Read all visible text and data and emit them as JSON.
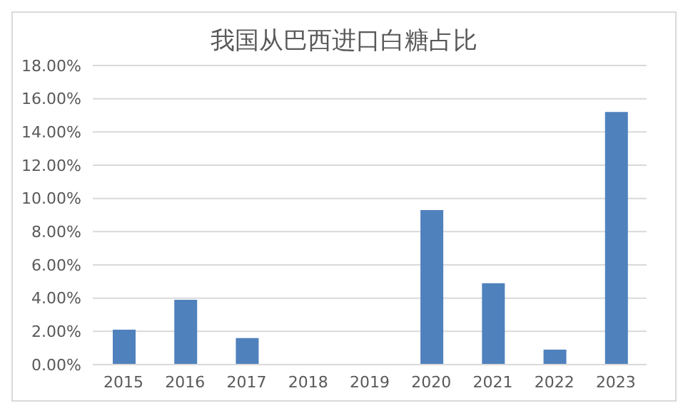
{
  "chart_data": {
    "type": "bar",
    "title": "我国从巴西进口白糖占比",
    "categories": [
      "2015",
      "2016",
      "2017",
      "2018",
      "2019",
      "2020",
      "2021",
      "2022",
      "2023"
    ],
    "values": [
      2.1,
      3.9,
      1.6,
      0,
      0,
      9.3,
      4.9,
      0.9,
      15.2
    ],
    "color": "#4f81bd",
    "ylim": [
      0,
      18
    ],
    "yticks": [
      {
        "value": 0,
        "label": "0.00%"
      },
      {
        "value": 2,
        "label": "2.00%"
      },
      {
        "value": 4,
        "label": "4.00%"
      },
      {
        "value": 6,
        "label": "6.00%"
      },
      {
        "value": 8,
        "label": "8.00%"
      },
      {
        "value": 10,
        "label": "10.00%"
      },
      {
        "value": 12,
        "label": "12.00%"
      },
      {
        "value": 14,
        "label": "14.00%"
      },
      {
        "value": 16,
        "label": "16.00%"
      },
      {
        "value": 18,
        "label": "18.00%"
      }
    ],
    "grid": "y"
  }
}
